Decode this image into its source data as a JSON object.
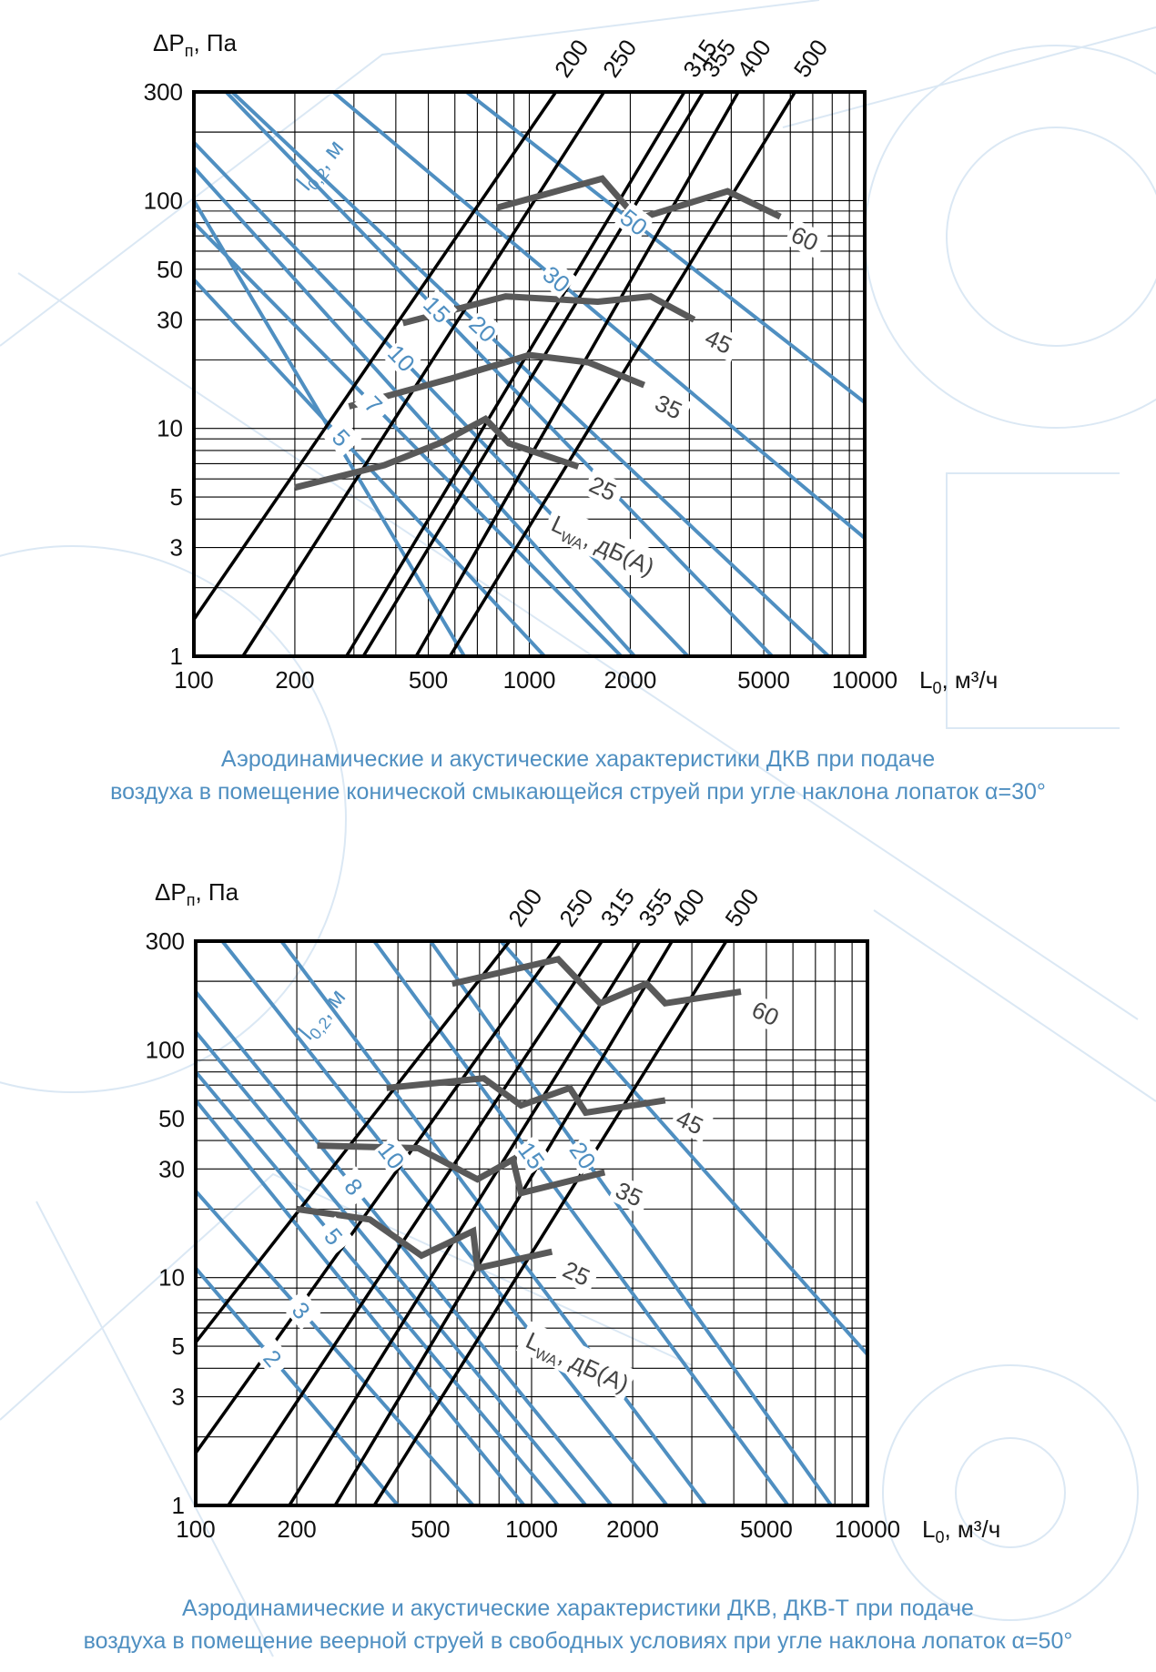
{
  "colors": {
    "blue": "#4f8fc1",
    "noise": "#595959",
    "black": "#000000",
    "grid": "#000000"
  },
  "chart_data": [
    {
      "type": "line",
      "xscale": "log",
      "yscale": "log",
      "xlim": [
        100,
        10000
      ],
      "ylim": [
        1,
        300
      ],
      "x_ticks": [
        "100",
        "200",
        "500",
        "1000",
        "2000",
        "5000",
        "10000"
      ],
      "y_ticks": [
        "1",
        "3",
        "5",
        "10",
        "30",
        "50",
        "100",
        "300"
      ],
      "xlabel_main": "L",
      "xlabel_sub": "0",
      "xlabel_unit": ", м³/ч",
      "ylabel_main": "ΔP",
      "ylabel_sub": "п",
      "ylabel_unit": ", Па",
      "diameter_series": [
        {
          "name": "200",
          "points": [
            [
              100,
              1.45
            ],
            [
              1200,
              300
            ]
          ]
        },
        {
          "name": "250",
          "points": [
            [
              140,
              1
            ],
            [
              1670,
              300
            ]
          ]
        },
        {
          "name": "315",
          "points": [
            [
              285,
              1
            ],
            [
              2900,
              300
            ]
          ]
        },
        {
          "name": "355",
          "points": [
            [
              320,
              1
            ],
            [
              3300,
              300
            ]
          ]
        },
        {
          "name": "400",
          "points": [
            [
              460,
              1
            ],
            [
              4200,
              300
            ]
          ]
        },
        {
          "name": "500",
          "points": [
            [
              580,
              1
            ],
            [
              6200,
              300
            ]
          ]
        }
      ],
      "throw_label": "l",
      "throw_label_sub": "0,2",
      "throw_label_unit": ", м",
      "throw_series": [
        {
          "name": "5",
          "points": [
            [
              100,
              45
            ],
            [
              1110,
              1
            ]
          ]
        },
        {
          "name": "7",
          "points": [
            [
              100,
              80
            ],
            [
              1880,
              1
            ]
          ]
        },
        {
          "name": "10",
          "points": [
            [
              100,
              180
            ],
            [
              2970,
              1
            ]
          ]
        },
        {
          "name": "15",
          "points": [
            [
              100,
              420
            ],
            [
              5300,
              1
            ]
          ]
        },
        {
          "name": "20",
          "points": [
            [
              130,
              300
            ],
            [
              7800,
              1
            ]
          ]
        },
        {
          "name": "30",
          "points": [
            [
              260,
              300
            ],
            [
              10000,
              3.3
            ]
          ]
        },
        {
          "name": "50",
          "points": [
            [
              650,
              300
            ],
            [
              10000,
              13
            ]
          ]
        },
        {
          "name": "",
          "points": [
            [
              100,
              140
            ],
            [
              2060,
              1
            ]
          ]
        },
        {
          "name": "",
          "points": [
            [
              100,
              100
            ],
            [
              640,
              1
            ]
          ]
        }
      ],
      "noise_label": "L",
      "noise_label_sub": "WA",
      "noise_label_unit": ", дБ(А)",
      "noise_series": [
        {
          "name": "25",
          "points": [
            [
              200,
              5.5
            ],
            [
              370,
              6.9
            ],
            [
              550,
              8.7
            ],
            [
              740,
              11
            ],
            [
              870,
              8.6
            ],
            [
              1400,
              6.8
            ]
          ]
        },
        {
          "name": "35",
          "points": [
            [
              290,
              12.5
            ],
            [
              580,
              16.5
            ],
            [
              1000,
              21
            ],
            [
              1500,
              19.5
            ],
            [
              2200,
              15.5
            ]
          ]
        },
        {
          "name": "45",
          "points": [
            [
              420,
              29
            ],
            [
              850,
              38
            ],
            [
              1600,
              36
            ],
            [
              2300,
              38
            ],
            [
              3100,
              30
            ]
          ]
        },
        {
          "name": "60",
          "points": [
            [
              800,
              93
            ],
            [
              1650,
              125
            ],
            [
              2100,
              83
            ],
            [
              3900,
              110
            ],
            [
              5600,
              85
            ]
          ]
        }
      ]
    },
    {
      "type": "line",
      "xscale": "log",
      "yscale": "log",
      "xlim": [
        100,
        10000
      ],
      "ylim": [
        1,
        300
      ],
      "x_ticks": [
        "100",
        "200",
        "500",
        "1000",
        "2000",
        "5000",
        "10000"
      ],
      "y_ticks": [
        "1",
        "3",
        "5",
        "10",
        "30",
        "50",
        "100",
        "300"
      ],
      "xlabel_main": "L",
      "xlabel_sub": "0",
      "xlabel_unit": ", м³/ч",
      "ylabel_main": "ΔP",
      "ylabel_sub": "п",
      "ylabel_unit": ", Па",
      "diameter_series": [
        {
          "name": "200",
          "points": [
            [
              100,
              5.2
            ],
            [
              860,
              300
            ]
          ]
        },
        {
          "name": "250",
          "points": [
            [
              100,
              1.7
            ],
            [
              1220,
              300
            ]
          ]
        },
        {
          "name": "315",
          "points": [
            [
              125,
              1
            ],
            [
              1620,
              300
            ]
          ]
        },
        {
          "name": "355",
          "points": [
            [
              190,
              1
            ],
            [
              2100,
              300
            ]
          ]
        },
        {
          "name": "400",
          "points": [
            [
              260,
              1
            ],
            [
              2620,
              300
            ]
          ]
        },
        {
          "name": "500",
          "points": [
            [
              340,
              1
            ],
            [
              3800,
              300
            ]
          ]
        }
      ],
      "throw_label": "l",
      "throw_label_sub": "0,2",
      "throw_label_unit": ", м",
      "throw_series": [
        {
          "name": "2",
          "points": [
            [
              100,
              11
            ],
            [
              400,
              1
            ]
          ]
        },
        {
          "name": "3",
          "points": [
            [
              100,
              24
            ],
            [
              670,
              1
            ]
          ]
        },
        {
          "name": "5",
          "points": [
            [
              100,
              80
            ],
            [
              1200,
              1
            ]
          ]
        },
        {
          "name": "8",
          "points": [
            [
              100,
              180
            ],
            [
              1730,
              1
            ]
          ]
        },
        {
          "name": "10",
          "points": [
            [
              120,
              300
            ],
            [
              2530,
              1
            ]
          ]
        },
        {
          "name": "15",
          "points": [
            [
              340,
              300
            ],
            [
              5800,
              1
            ]
          ]
        },
        {
          "name": "20",
          "points": [
            [
              500,
              300
            ],
            [
              7800,
              1
            ]
          ]
        },
        {
          "name": "",
          "points": [
            [
              100,
              60
            ],
            [
              950,
              1
            ]
          ]
        },
        {
          "name": "",
          "points": [
            [
              100,
              120
            ],
            [
              1450,
              1
            ]
          ]
        },
        {
          "name": "",
          "points": [
            [
              180,
              300
            ],
            [
              3300,
              1
            ]
          ]
        },
        {
          "name": "",
          "points": [
            [
              810,
              300
            ],
            [
              10000,
              4.6
            ]
          ]
        }
      ],
      "noise_label": "L",
      "noise_label_sub": "WA",
      "noise_label_unit": ", дБ(А)",
      "noise_series": [
        {
          "name": "25",
          "points": [
            [
              200,
              20
            ],
            [
              330,
              18
            ],
            [
              470,
              12.5
            ],
            [
              670,
              16
            ],
            [
              690,
              11
            ],
            [
              1150,
              13
            ]
          ]
        },
        {
          "name": "35",
          "points": [
            [
              230,
              38
            ],
            [
              460,
              37
            ],
            [
              690,
              27
            ],
            [
              880,
              33
            ],
            [
              930,
              23.5
            ],
            [
              1650,
              29
            ]
          ]
        },
        {
          "name": "45",
          "points": [
            [
              370,
              68
            ],
            [
              720,
              75
            ],
            [
              930,
              57
            ],
            [
              1300,
              68
            ],
            [
              1450,
              53
            ],
            [
              2500,
              60
            ]
          ]
        },
        {
          "name": "60",
          "points": [
            [
              580,
              195
            ],
            [
              1200,
              250
            ],
            [
              1600,
              160
            ],
            [
              2200,
              195
            ],
            [
              2500,
              160
            ],
            [
              4200,
              180
            ]
          ]
        }
      ]
    }
  ],
  "captions": [
    {
      "line1": "Аэродинамические и акустические характеристики ДКВ при подаче",
      "line2": "воздуха в помещение конической смыкающейся струей при угле наклона лопаток α=30°"
    },
    {
      "line1": "Аэродинамические и акустические характеристики ДКВ, ДКВ-Т при подаче",
      "line2": "воздуха в помещение веерной струей в свободных условиях при угле наклона лопаток α=50°"
    }
  ]
}
